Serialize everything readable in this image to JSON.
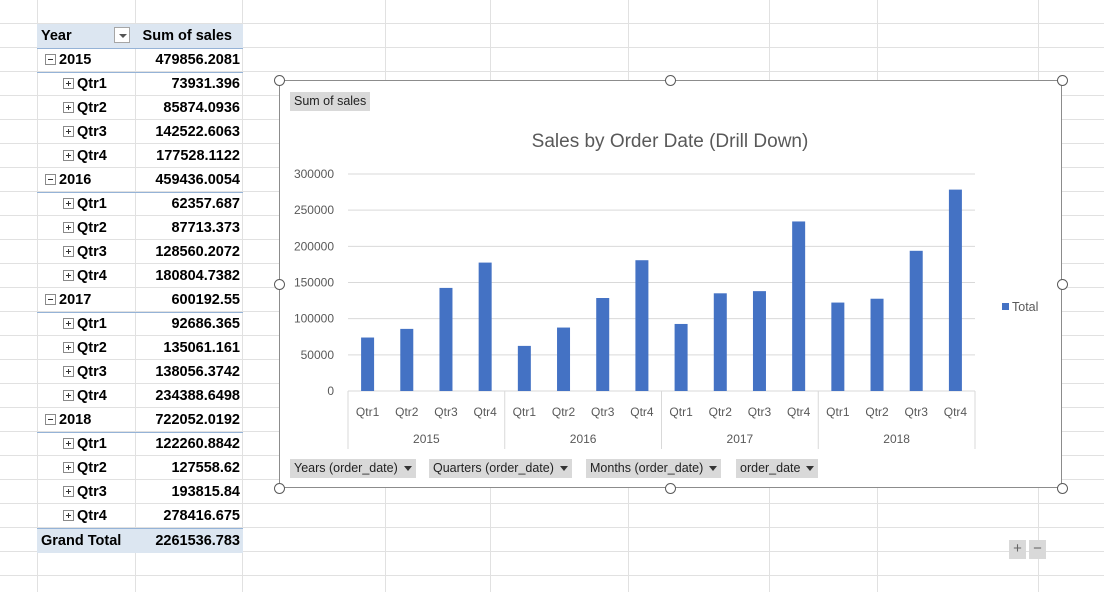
{
  "pivot": {
    "header_label": "Year",
    "header_value": "Sum of sales",
    "years": [
      {
        "year": "2015",
        "total": "479856.2081",
        "quarters": [
          {
            "label": "Qtr1",
            "value": "73931.396"
          },
          {
            "label": "Qtr2",
            "value": "85874.0936"
          },
          {
            "label": "Qtr3",
            "value": "142522.6063"
          },
          {
            "label": "Qtr4",
            "value": "177528.1122"
          }
        ]
      },
      {
        "year": "2016",
        "total": "459436.0054",
        "quarters": [
          {
            "label": "Qtr1",
            "value": "62357.687"
          },
          {
            "label": "Qtr2",
            "value": "87713.373"
          },
          {
            "label": "Qtr3",
            "value": "128560.2072"
          },
          {
            "label": "Qtr4",
            "value": "180804.7382"
          }
        ]
      },
      {
        "year": "2017",
        "total": "600192.55",
        "quarters": [
          {
            "label": "Qtr1",
            "value": "92686.365"
          },
          {
            "label": "Qtr2",
            "value": "135061.161"
          },
          {
            "label": "Qtr3",
            "value": "138056.3742"
          },
          {
            "label": "Qtr4",
            "value": "234388.6498"
          }
        ]
      },
      {
        "year": "2018",
        "total": "722052.0192",
        "quarters": [
          {
            "label": "Qtr1",
            "value": "122260.8842"
          },
          {
            "label": "Qtr2",
            "value": "127558.62"
          },
          {
            "label": "Qtr3",
            "value": "193815.84"
          },
          {
            "label": "Qtr4",
            "value": "278416.675"
          }
        ]
      }
    ],
    "grand_total_label": "Grand Total",
    "grand_total_value": "2261536.783"
  },
  "chart": {
    "value_field_button": "Sum of sales",
    "axis_field_buttons": [
      "Years (order_date)",
      "Quarters (order_date)",
      "Months (order_date)",
      "order_date"
    ],
    "expand_label": "+",
    "collapse_label": "−",
    "bar_color": "#4472c4"
  },
  "chart_data": {
    "type": "bar",
    "title": "Sales by Order Date (Drill Down)",
    "categories": [
      "Qtr1",
      "Qtr2",
      "Qtr3",
      "Qtr4",
      "Qtr1",
      "Qtr2",
      "Qtr3",
      "Qtr4",
      "Qtr1",
      "Qtr2",
      "Qtr3",
      "Qtr4",
      "Qtr1",
      "Qtr2",
      "Qtr3",
      "Qtr4"
    ],
    "groups": [
      "2015",
      "2016",
      "2017",
      "2018"
    ],
    "series": [
      {
        "name": "Total",
        "values": [
          73931.396,
          85874.0936,
          142522.6063,
          177528.1122,
          62357.687,
          87713.373,
          128560.2072,
          180804.7382,
          92686.365,
          135061.161,
          138056.3742,
          234388.6498,
          122260.8842,
          127558.62,
          193815.84,
          278416.675
        ]
      }
    ],
    "ylim": [
      0,
      300000
    ],
    "yticks": [
      "0",
      "50000",
      "100000",
      "150000",
      "200000",
      "250000",
      "300000"
    ],
    "grid": true,
    "legend": "right"
  }
}
